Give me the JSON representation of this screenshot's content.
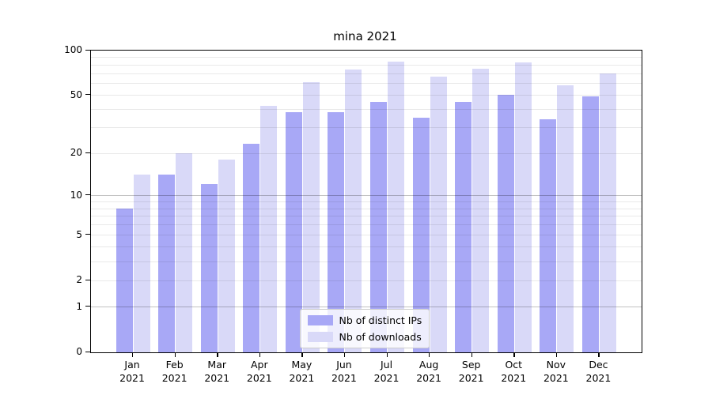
{
  "chart_data": {
    "type": "bar",
    "title": "mina 2021",
    "categories": [
      "Jan",
      "Feb",
      "Mar",
      "Apr",
      "May",
      "Jun",
      "Jul",
      "Aug",
      "Sep",
      "Oct",
      "Nov",
      "Dec"
    ],
    "x_tick_year": "2021",
    "series": [
      {
        "name": "Nb of distinct IPs",
        "color": "#a8a8f6",
        "values": [
          8,
          14,
          12,
          23,
          38,
          38,
          45,
          35,
          45,
          50,
          34,
          49
        ]
      },
      {
        "name": "Nb of downloads",
        "color": "#d9d9f8",
        "values": [
          14,
          20,
          18,
          42,
          61,
          74,
          84,
          66,
          75,
          83,
          58,
          70
        ]
      }
    ],
    "yscale": "log1p",
    "ylim": [
      0,
      100
    ],
    "y_major_ticks": [
      0,
      1,
      2,
      5,
      10,
      20,
      50,
      100
    ],
    "y_minor_gridlines": [
      3,
      4,
      6,
      7,
      8,
      9,
      30,
      40,
      60,
      70,
      80,
      90
    ],
    "y_emphasized_gridlines": [
      1,
      10
    ],
    "grid": true,
    "legend_position": "lower center",
    "colors": {
      "bar_distinct_ips": "#a8a8f6",
      "bar_downloads": "#d9d9f8",
      "grid_minor": "#ebebeb",
      "grid_emphasized": "#c3c3c3",
      "spine": "#000000",
      "legend_border": "#cccccc"
    }
  }
}
